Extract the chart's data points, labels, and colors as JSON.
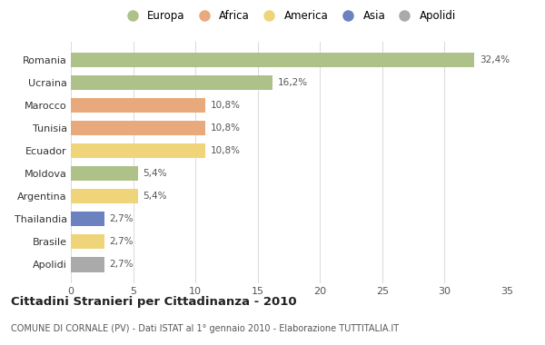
{
  "countries": [
    "Romania",
    "Ucraina",
    "Marocco",
    "Tunisia",
    "Ecuador",
    "Moldova",
    "Argentina",
    "Thailandia",
    "Brasile",
    "Apolidi"
  ],
  "values": [
    32.4,
    16.2,
    10.8,
    10.8,
    10.8,
    5.4,
    5.4,
    2.7,
    2.7,
    2.7
  ],
  "labels": [
    "32,4%",
    "16,2%",
    "10,8%",
    "10,8%",
    "10,8%",
    "5,4%",
    "5,4%",
    "2,7%",
    "2,7%",
    "2,7%"
  ],
  "colors": [
    "#adc189",
    "#adc189",
    "#e8a97c",
    "#e8a97c",
    "#f0d47a",
    "#adc189",
    "#f0d47a",
    "#6b81c0",
    "#f0d47a",
    "#aaaaaa"
  ],
  "legend_labels": [
    "Europa",
    "Africa",
    "America",
    "Asia",
    "Apolidi"
  ],
  "legend_colors": [
    "#adc189",
    "#e8a97c",
    "#f0d47a",
    "#6b81c0",
    "#aaaaaa"
  ],
  "title": "Cittadini Stranieri per Cittadinanza - 2010",
  "subtitle": "COMUNE DI CORNALE (PV) - Dati ISTAT al 1° gennaio 2010 - Elaborazione TUTTITALIA.IT",
  "xlim": [
    0,
    35
  ],
  "xticks": [
    0,
    5,
    10,
    15,
    20,
    25,
    30,
    35
  ],
  "background_color": "#ffffff",
  "grid_color": "#dddddd"
}
